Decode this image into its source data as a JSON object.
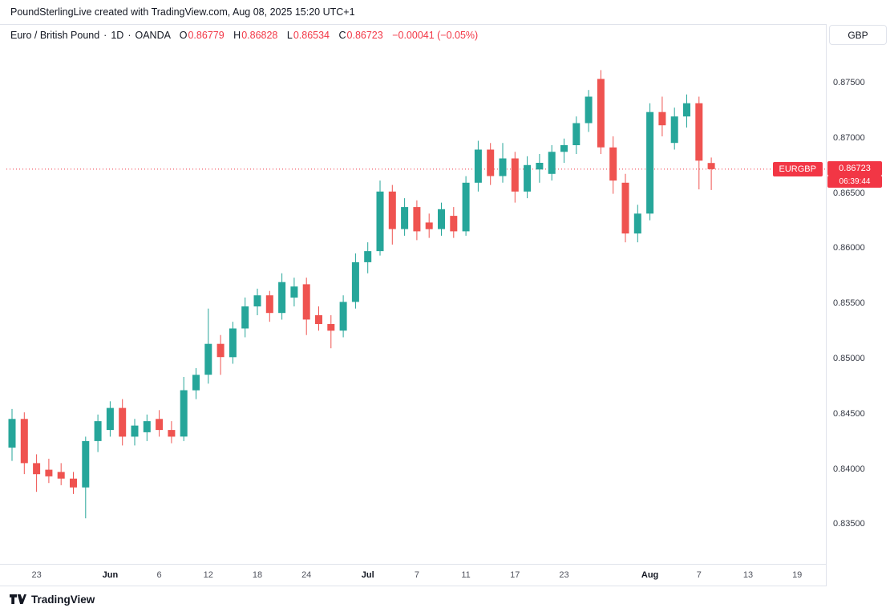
{
  "header": {
    "title": "PoundSterlingLive created with TradingView.com, Aug 08, 2025 15:20 UTC+1"
  },
  "legend": {
    "symbol": "Euro / British Pound",
    "sep": "·",
    "interval": "1D",
    "venue": "OANDA",
    "o_label": "O",
    "o_value": "0.86779",
    "h_label": "H",
    "h_value": "0.86828",
    "l_label": "L",
    "l_value": "0.86534",
    "c_label": "C",
    "c_value": "0.86723",
    "change": "−0.00041 (−0.05%)"
  },
  "price_axis": {
    "currency_button": "GBP",
    "ticks": [
      {
        "label": "0.87500",
        "value": 0.875
      },
      {
        "label": "0.87000",
        "value": 0.87
      },
      {
        "label": "0.86500",
        "value": 0.865
      },
      {
        "label": "0.86000",
        "value": 0.86
      },
      {
        "label": "0.85500",
        "value": 0.855
      },
      {
        "label": "0.85000",
        "value": 0.85
      },
      {
        "label": "0.84500",
        "value": 0.845
      },
      {
        "label": "0.84000",
        "value": 0.84
      },
      {
        "label": "0.83500",
        "value": 0.835
      }
    ]
  },
  "time_axis": {
    "labels": [
      {
        "text": "23",
        "index": 2,
        "bold": false
      },
      {
        "text": "Jun",
        "index": 8,
        "bold": true
      },
      {
        "text": "6",
        "index": 12,
        "bold": false
      },
      {
        "text": "12",
        "index": 16,
        "bold": false
      },
      {
        "text": "18",
        "index": 20,
        "bold": false
      },
      {
        "text": "24",
        "index": 24,
        "bold": false
      },
      {
        "text": "Jul",
        "index": 29,
        "bold": true
      },
      {
        "text": "7",
        "index": 33,
        "bold": false
      },
      {
        "text": "11",
        "index": 37,
        "bold": false
      },
      {
        "text": "17",
        "index": 41,
        "bold": false
      },
      {
        "text": "23",
        "index": 45,
        "bold": false
      },
      {
        "text": "Aug",
        "index": 52,
        "bold": true
      },
      {
        "text": "7",
        "index": 56,
        "bold": false
      },
      {
        "text": "13",
        "index": 60,
        "bold": false
      },
      {
        "text": "19",
        "index": 64,
        "bold": false
      }
    ]
  },
  "price_line": {
    "symbol_label": "EURGBP",
    "price": "0.86723",
    "countdown": "06:39:44",
    "value": 0.86723,
    "color": "#f23645"
  },
  "footer": {
    "logo_text": "TradingView"
  },
  "chart_data": {
    "type": "candlestick",
    "title": "Euro / British Pound · 1D · OANDA",
    "symbol": "EURGBP",
    "interval": "1D",
    "up_color": "#26a69a",
    "down_color": "#ef5350",
    "ylim": [
      0.8314,
      0.8803
    ],
    "x_start": 15,
    "x_step": 15.3,
    "grid": false,
    "last": {
      "o": 0.86779,
      "h": 0.86828,
      "l": 0.86534,
      "c": 0.86723,
      "change": -0.00041,
      "change_pct": -0.05
    },
    "candles": [
      {
        "d": "May 21",
        "o": 0.842,
        "h": 0.8455,
        "l": 0.8408,
        "c": 0.8446
      },
      {
        "d": "May 22",
        "o": 0.8446,
        "h": 0.8452,
        "l": 0.8396,
        "c": 0.8406
      },
      {
        "d": "May 23",
        "o": 0.8406,
        "h": 0.8414,
        "l": 0.838,
        "c": 0.8396
      },
      {
        "d": "May 26",
        "o": 0.84,
        "h": 0.841,
        "l": 0.8388,
        "c": 0.8394
      },
      {
        "d": "May 27",
        "o": 0.8398,
        "h": 0.8406,
        "l": 0.8386,
        "c": 0.8392
      },
      {
        "d": "May 28",
        "o": 0.8392,
        "h": 0.8398,
        "l": 0.8378,
        "c": 0.8384
      },
      {
        "d": "May 29",
        "o": 0.8384,
        "h": 0.843,
        "l": 0.8356,
        "c": 0.8426
      },
      {
        "d": "May 30",
        "o": 0.8426,
        "h": 0.845,
        "l": 0.8416,
        "c": 0.8444
      },
      {
        "d": "Jun 2",
        "o": 0.8436,
        "h": 0.8462,
        "l": 0.843,
        "c": 0.8456
      },
      {
        "d": "Jun 3",
        "o": 0.8456,
        "h": 0.8464,
        "l": 0.8422,
        "c": 0.843
      },
      {
        "d": "Jun 4",
        "o": 0.843,
        "h": 0.8446,
        "l": 0.8422,
        "c": 0.844
      },
      {
        "d": "Jun 5",
        "o": 0.8434,
        "h": 0.845,
        "l": 0.8426,
        "c": 0.8444
      },
      {
        "d": "Jun 6",
        "o": 0.8446,
        "h": 0.8454,
        "l": 0.843,
        "c": 0.8436
      },
      {
        "d": "Jun 9",
        "o": 0.8436,
        "h": 0.8444,
        "l": 0.8424,
        "c": 0.843
      },
      {
        "d": "Jun 10",
        "o": 0.843,
        "h": 0.8484,
        "l": 0.8426,
        "c": 0.8472
      },
      {
        "d": "Jun 11",
        "o": 0.8472,
        "h": 0.8492,
        "l": 0.8464,
        "c": 0.8486
      },
      {
        "d": "Jun 12",
        "o": 0.8486,
        "h": 0.8546,
        "l": 0.8478,
        "c": 0.8514
      },
      {
        "d": "Jun 13",
        "o": 0.8514,
        "h": 0.8522,
        "l": 0.8486,
        "c": 0.8502
      },
      {
        "d": "Jun 16",
        "o": 0.8502,
        "h": 0.8534,
        "l": 0.8496,
        "c": 0.8528
      },
      {
        "d": "Jun 17",
        "o": 0.8528,
        "h": 0.8556,
        "l": 0.852,
        "c": 0.8548
      },
      {
        "d": "Jun 18",
        "o": 0.8548,
        "h": 0.8564,
        "l": 0.854,
        "c": 0.8558
      },
      {
        "d": "Jun 19",
        "o": 0.8558,
        "h": 0.8562,
        "l": 0.8534,
        "c": 0.8542
      },
      {
        "d": "Jun 20",
        "o": 0.8542,
        "h": 0.8578,
        "l": 0.8536,
        "c": 0.857
      },
      {
        "d": "Jun 23",
        "o": 0.8556,
        "h": 0.8574,
        "l": 0.8548,
        "c": 0.8566
      },
      {
        "d": "Jun 24",
        "o": 0.8568,
        "h": 0.8574,
        "l": 0.8522,
        "c": 0.8536
      },
      {
        "d": "Jun 25",
        "o": 0.854,
        "h": 0.8548,
        "l": 0.8526,
        "c": 0.8532
      },
      {
        "d": "Jun 26",
        "o": 0.8532,
        "h": 0.854,
        "l": 0.851,
        "c": 0.8526
      },
      {
        "d": "Jun 27",
        "o": 0.8526,
        "h": 0.8558,
        "l": 0.852,
        "c": 0.8552
      },
      {
        "d": "Jun 30",
        "o": 0.8552,
        "h": 0.8596,
        "l": 0.8546,
        "c": 0.8588
      },
      {
        "d": "Jul 1",
        "o": 0.8588,
        "h": 0.8606,
        "l": 0.8578,
        "c": 0.8598
      },
      {
        "d": "Jul 2",
        "o": 0.8598,
        "h": 0.8662,
        "l": 0.8594,
        "c": 0.8652
      },
      {
        "d": "Jul 3",
        "o": 0.8652,
        "h": 0.8658,
        "l": 0.8604,
        "c": 0.8618
      },
      {
        "d": "Jul 4",
        "o": 0.8618,
        "h": 0.8646,
        "l": 0.8612,
        "c": 0.8638
      },
      {
        "d": "Jul 7",
        "o": 0.8638,
        "h": 0.8644,
        "l": 0.8608,
        "c": 0.8616
      },
      {
        "d": "Jul 8",
        "o": 0.8624,
        "h": 0.8632,
        "l": 0.861,
        "c": 0.8618
      },
      {
        "d": "Jul 9",
        "o": 0.8618,
        "h": 0.8642,
        "l": 0.8612,
        "c": 0.8636
      },
      {
        "d": "Jul 10",
        "o": 0.863,
        "h": 0.8638,
        "l": 0.861,
        "c": 0.8616
      },
      {
        "d": "Jul 11",
        "o": 0.8616,
        "h": 0.8666,
        "l": 0.8612,
        "c": 0.866
      },
      {
        "d": "Jul 14",
        "o": 0.866,
        "h": 0.8698,
        "l": 0.8652,
        "c": 0.869
      },
      {
        "d": "Jul 15",
        "o": 0.869,
        "h": 0.8696,
        "l": 0.8658,
        "c": 0.8666
      },
      {
        "d": "Jul 16",
        "o": 0.8666,
        "h": 0.8696,
        "l": 0.866,
        "c": 0.8682
      },
      {
        "d": "Jul 17",
        "o": 0.8682,
        "h": 0.8688,
        "l": 0.8642,
        "c": 0.8652
      },
      {
        "d": "Jul 18",
        "o": 0.8652,
        "h": 0.8684,
        "l": 0.8646,
        "c": 0.8676
      },
      {
        "d": "Jul 21",
        "o": 0.8672,
        "h": 0.8686,
        "l": 0.866,
        "c": 0.8678
      },
      {
        "d": "Jul 22",
        "o": 0.8668,
        "h": 0.8694,
        "l": 0.8662,
        "c": 0.8688
      },
      {
        "d": "Jul 23",
        "o": 0.8688,
        "h": 0.87,
        "l": 0.8678,
        "c": 0.8694
      },
      {
        "d": "Jul 24",
        "o": 0.8694,
        "h": 0.872,
        "l": 0.8686,
        "c": 0.8714
      },
      {
        "d": "Jul 25",
        "o": 0.8714,
        "h": 0.8744,
        "l": 0.8706,
        "c": 0.8738
      },
      {
        "d": "Jul 28",
        "o": 0.8754,
        "h": 0.8762,
        "l": 0.8686,
        "c": 0.8692
      },
      {
        "d": "Jul 29",
        "o": 0.8692,
        "h": 0.8702,
        "l": 0.865,
        "c": 0.8662
      },
      {
        "d": "Jul 30",
        "o": 0.866,
        "h": 0.8668,
        "l": 0.8606,
        "c": 0.8614
      },
      {
        "d": "Jul 31",
        "o": 0.8614,
        "h": 0.864,
        "l": 0.8606,
        "c": 0.8632
      },
      {
        "d": "Aug 1",
        "o": 0.8632,
        "h": 0.8732,
        "l": 0.8626,
        "c": 0.8724
      },
      {
        "d": "Aug 4",
        "o": 0.8724,
        "h": 0.8738,
        "l": 0.8702,
        "c": 0.8712
      },
      {
        "d": "Aug 5",
        "o": 0.8696,
        "h": 0.8728,
        "l": 0.869,
        "c": 0.872
      },
      {
        "d": "Aug 6",
        "o": 0.872,
        "h": 0.874,
        "l": 0.871,
        "c": 0.8732
      },
      {
        "d": "Aug 7",
        "o": 0.8732,
        "h": 0.8738,
        "l": 0.8654,
        "c": 0.868
      },
      {
        "d": "Aug 8",
        "o": 0.86779,
        "h": 0.86828,
        "l": 0.86534,
        "c": 0.86723
      }
    ]
  }
}
